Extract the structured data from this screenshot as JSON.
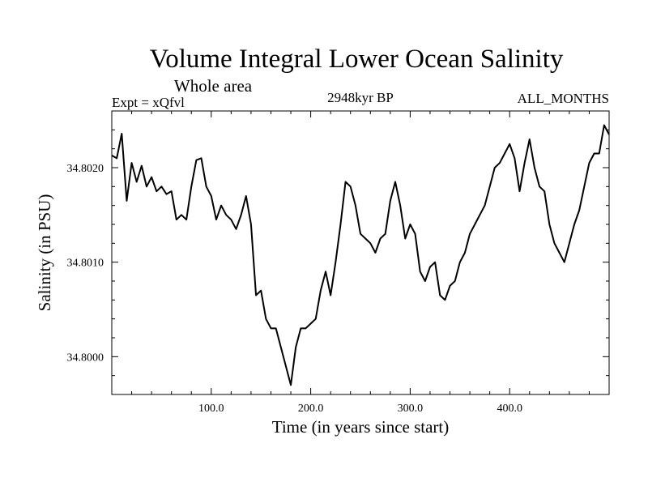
{
  "chart_data": {
    "type": "line",
    "title": "Volume Integral Lower Ocean Salinity",
    "subtitle": "Whole area",
    "annotations": {
      "left": "Expt = xQfvl",
      "center": "2948kyr BP",
      "right": "ALL_MONTHS"
    },
    "xlabel": "Time (in years since start)",
    "ylabel": "Salinity (in PSU)",
    "xlim": [
      0,
      500
    ],
    "ylim": [
      34.7996,
      34.8026
    ],
    "xticks": [
      100,
      200,
      300,
      400
    ],
    "xtick_labels": [
      "100.0",
      "200.0",
      "300.0",
      "400.0"
    ],
    "yticks": [
      34.8,
      34.801,
      34.802
    ],
    "ytick_labels": [
      "34.8000",
      "34.8010",
      "34.8020"
    ],
    "grid": false,
    "series": [
      {
        "name": "Salinity",
        "color": "#000000",
        "x": [
          0,
          5,
          10,
          15,
          20,
          25,
          30,
          35,
          40,
          45,
          50,
          55,
          60,
          65,
          70,
          75,
          80,
          85,
          90,
          95,
          100,
          105,
          110,
          115,
          120,
          125,
          130,
          135,
          140,
          145,
          150,
          155,
          160,
          165,
          170,
          175,
          180,
          185,
          190,
          195,
          200,
          205,
          210,
          215,
          220,
          225,
          230,
          235,
          240,
          245,
          250,
          255,
          260,
          265,
          270,
          275,
          280,
          285,
          290,
          295,
          300,
          305,
          310,
          315,
          320,
          325,
          330,
          335,
          340,
          345,
          350,
          355,
          360,
          365,
          370,
          375,
          380,
          385,
          390,
          395,
          400,
          405,
          410,
          415,
          420,
          425,
          430,
          435,
          440,
          445,
          450,
          455,
          460,
          465,
          470,
          475,
          480,
          485,
          490,
          495,
          500
        ],
        "y": [
          34.80213,
          34.8021,
          34.80236,
          34.80165,
          34.80205,
          34.80185,
          34.80202,
          34.8018,
          34.8019,
          34.80175,
          34.8018,
          34.80172,
          34.80175,
          34.80145,
          34.8015,
          34.80145,
          34.8018,
          34.80208,
          34.8021,
          34.8018,
          34.8017,
          34.80145,
          34.8016,
          34.8015,
          34.80145,
          34.80135,
          34.8015,
          34.8017,
          34.8014,
          34.80065,
          34.8007,
          34.8004,
          34.8003,
          34.8003,
          34.8001,
          34.7999,
          34.7997,
          34.8001,
          34.8003,
          34.8003,
          34.80035,
          34.8004,
          34.8007,
          34.8009,
          34.80065,
          34.801,
          34.8014,
          34.80185,
          34.8018,
          34.8016,
          34.8013,
          34.80125,
          34.8012,
          34.8011,
          34.80125,
          34.8013,
          34.80165,
          34.80185,
          34.8016,
          34.80125,
          34.8014,
          34.8013,
          34.8009,
          34.8008,
          34.80095,
          34.801,
          34.80065,
          34.8006,
          34.80075,
          34.8008,
          34.801,
          34.8011,
          34.8013,
          34.8014,
          34.8015,
          34.8016,
          34.8018,
          34.802,
          34.80205,
          34.80215,
          34.80225,
          34.8021,
          34.80175,
          34.80205,
          34.8023,
          34.802,
          34.8018,
          34.80175,
          34.8014,
          34.8012,
          34.8011,
          34.801,
          34.8012,
          34.8014,
          34.80155,
          34.8018,
          34.80205,
          34.80215,
          34.80215,
          34.80245,
          34.80235
        ]
      }
    ]
  }
}
